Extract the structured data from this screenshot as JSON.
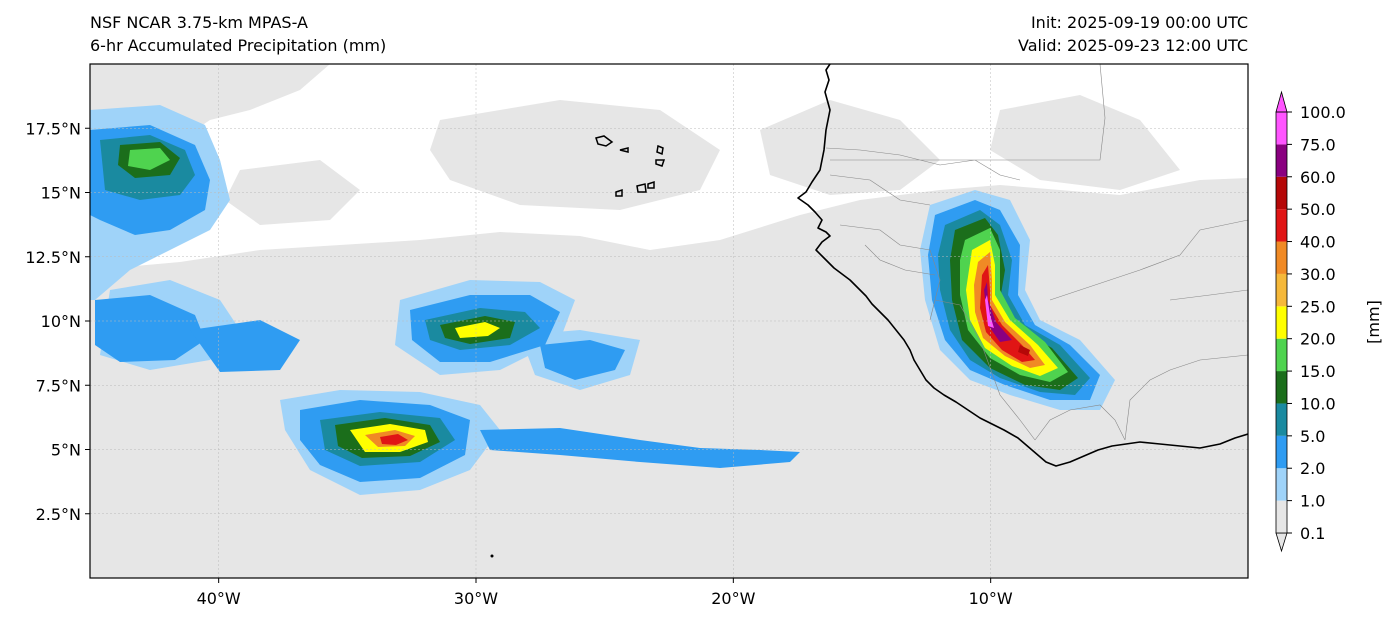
{
  "header": {
    "model_name": "NSF NCAR 3.75-km MPAS-A",
    "field_name": "6-hr Accumulated Precipitation (mm)",
    "init_time": "Init: 2025-09-19 00:00 UTC",
    "valid_time": "Valid: 2025-09-23 12:00 UTC"
  },
  "map": {
    "projection": "PlateCarree",
    "lon_range": [
      -45,
      0
    ],
    "lat_range": [
      0,
      20
    ],
    "lon_ticks": [
      {
        "value": -40,
        "label": "40°W"
      },
      {
        "value": -30,
        "label": "30°W"
      },
      {
        "value": -20,
        "label": "20°W"
      },
      {
        "value": -10,
        "label": "10°W"
      }
    ],
    "lat_ticks": [
      {
        "value": 17.5,
        "label": "17.5°N"
      },
      {
        "value": 15,
        "label": "15°N"
      },
      {
        "value": 12.5,
        "label": "12.5°N"
      },
      {
        "value": 10,
        "label": "10°N"
      },
      {
        "value": 7.5,
        "label": "7.5°N"
      },
      {
        "value": 5,
        "label": "5°N"
      },
      {
        "value": 2.5,
        "label": "2.5°N"
      }
    ],
    "grid": true,
    "features": [
      "coastlines",
      "country-borders",
      "cabo-verde-islands"
    ]
  },
  "colorbar": {
    "unit_label": "[mm]",
    "extend": "both",
    "levels": [
      {
        "value": 0.1,
        "label": "0.1",
        "color": "#e6e6e6"
      },
      {
        "value": 1.0,
        "label": "1.0",
        "color": "#9fd3f9"
      },
      {
        "value": 2.0,
        "label": "2.0",
        "color": "#2f9cf2"
      },
      {
        "value": 5.0,
        "label": "5.0",
        "color": "#1a8aa0"
      },
      {
        "value": 10.0,
        "label": "10.0",
        "color": "#1b6e1b"
      },
      {
        "value": 15.0,
        "label": "15.0",
        "color": "#4fd34f"
      },
      {
        "value": 20.0,
        "label": "20.0",
        "color": "#ffff00"
      },
      {
        "value": 25.0,
        "label": "25.0",
        "color": "#f5b83a"
      },
      {
        "value": 30.0,
        "label": "30.0",
        "color": "#f08a25"
      },
      {
        "value": 40.0,
        "label": "40.0",
        "color": "#e01515"
      },
      {
        "value": 50.0,
        "label": "50.0",
        "color": "#b50808"
      },
      {
        "value": 60.0,
        "label": "60.0",
        "color": "#8a0080"
      },
      {
        "value": 75.0,
        "label": "75.0",
        "color": "#ff55ff"
      },
      {
        "value": 100.0,
        "label": "100.0",
        "color": "#ff55ff"
      }
    ]
  },
  "precip_regions": [
    {
      "name": "west-atlantic-band-north",
      "lon": -42.5,
      "lat": 15.5,
      "max_mm": 20
    },
    {
      "name": "central-atlantic-cluster",
      "lon": -32.5,
      "lat": 6.5,
      "max_mm": 50
    },
    {
      "name": "central-atlantic-band",
      "lon": -28.5,
      "lat": 10.0,
      "max_mm": 20
    },
    {
      "name": "guinea-sierra-leone-system",
      "lon": -10.0,
      "lat": 12.0,
      "max_mm": 100
    },
    {
      "name": "liberia-cote-divoire-system",
      "lon": -8.0,
      "lat": 8.0,
      "max_mm": 75
    }
  ]
}
